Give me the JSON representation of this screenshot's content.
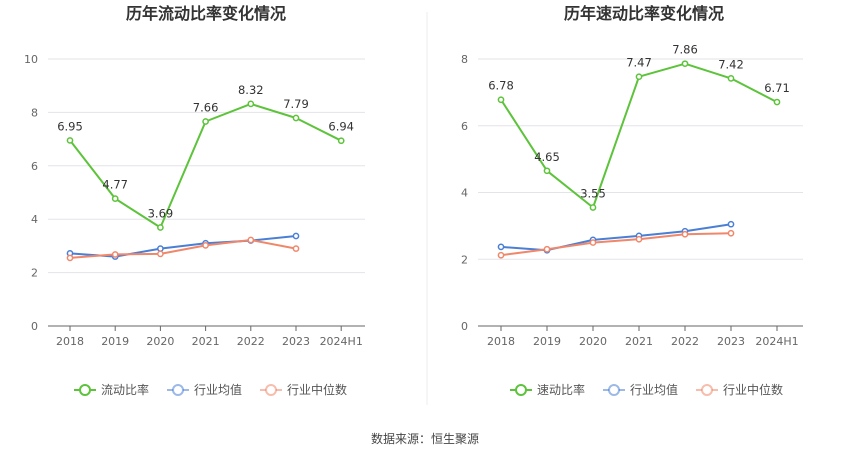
{
  "source": "数据来源：恒生聚源",
  "colors": {
    "primary": "#5cc33a",
    "avg": "#4a7fd6",
    "median": "#f0876a",
    "grid": "#e3e3ea",
    "axis": "#666666"
  },
  "chart_data": [
    {
      "type": "line",
      "title": "历年流动比率变化情况",
      "categories": [
        "2018",
        "2019",
        "2020",
        "2021",
        "2022",
        "2023",
        "2024H1"
      ],
      "ylim": [
        0,
        10
      ],
      "yticks": [
        0,
        2,
        4,
        6,
        8,
        10
      ],
      "series": [
        {
          "name": "流动比率",
          "values": [
            6.95,
            4.77,
            3.69,
            7.66,
            8.32,
            7.79,
            6.94
          ],
          "labels": [
            "6.95",
            "4.77",
            "3.69",
            "7.66",
            "8.32",
            "7.79",
            "6.94"
          ]
        },
        {
          "name": "行业均值",
          "values": [
            2.72,
            2.6,
            2.9,
            3.1,
            3.2,
            3.37,
            null
          ]
        },
        {
          "name": "行业中位数",
          "values": [
            2.55,
            2.68,
            2.7,
            3.02,
            3.22,
            2.9,
            null
          ]
        }
      ]
    },
    {
      "type": "line",
      "title": "历年速动比率变化情况",
      "categories": [
        "2018",
        "2019",
        "2020",
        "2021",
        "2022",
        "2023",
        "2024H1"
      ],
      "ylim": [
        0,
        8
      ],
      "yticks": [
        0,
        2,
        4,
        6,
        8
      ],
      "series": [
        {
          "name": "速动比率",
          "values": [
            6.78,
            4.65,
            3.55,
            7.47,
            7.86,
            7.42,
            6.71
          ],
          "labels": [
            "6.78",
            "4.65",
            "3.55",
            "7.47",
            "7.86",
            "7.42",
            "6.71"
          ]
        },
        {
          "name": "行业均值",
          "values": [
            2.37,
            2.27,
            2.58,
            2.7,
            2.84,
            3.05,
            null
          ]
        },
        {
          "name": "行业中位数",
          "values": [
            2.12,
            2.3,
            2.5,
            2.6,
            2.75,
            2.78,
            null
          ]
        }
      ]
    }
  ]
}
